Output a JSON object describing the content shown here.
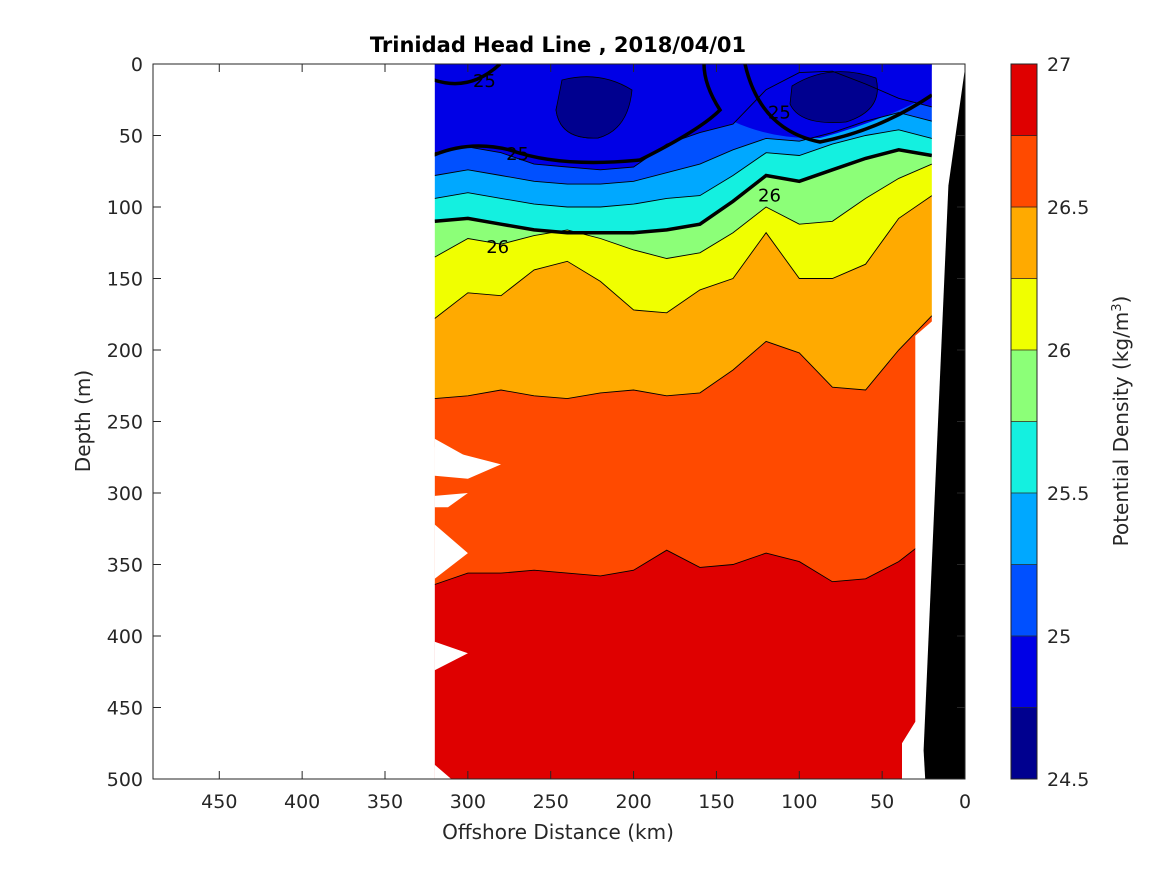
{
  "chart_data": {
    "type": "contourf",
    "title": "Trinidad Head Line , 2018/04/01",
    "xlabel": "Offshore Distance (km)",
    "ylabel": "Depth (m)",
    "xlim": [
      490,
      0
    ],
    "ylim": [
      0,
      500
    ],
    "x_reversed": true,
    "y_reversed": true,
    "x_ticks": [
      450,
      400,
      350,
      300,
      250,
      200,
      150,
      100,
      50,
      0
    ],
    "y_ticks": [
      0,
      50,
      100,
      150,
      200,
      250,
      300,
      350,
      400,
      450,
      500
    ],
    "grid": false,
    "colorbar": {
      "label_main": "Potential Density (kg/m",
      "label_exp": "3",
      "label_close": ")",
      "min": 24.5,
      "max": 27,
      "step": 0.25,
      "ticks": [
        24.5,
        25,
        25.5,
        26,
        26.5,
        27
      ],
      "colors": [
        "#00008f",
        "#0000e6",
        "#0050ff",
        "#00a8ff",
        "#14f0e0",
        "#8cff78",
        "#f0ff00",
        "#ffaa00",
        "#ff4a00",
        "#df0000"
      ]
    },
    "bathymetry_color": "#000000",
    "contour_labels": [
      {
        "text": "25",
        "x": 290,
        "depth": 12
      },
      {
        "text": "25",
        "x": 270,
        "depth": 63
      },
      {
        "text": "25",
        "x": 112,
        "depth": 34
      },
      {
        "text": "26",
        "x": 282,
        "depth": 128
      },
      {
        "text": "26",
        "x": 118,
        "depth": 92
      }
    ],
    "isopycnal_depths": {
      "x": [
        320,
        300,
        280,
        260,
        240,
        220,
        200,
        180,
        160,
        140,
        120,
        100,
        80,
        60,
        40,
        20
      ],
      "25.0": [
        0,
        0,
        0,
        0,
        0,
        0,
        0,
        0,
        0,
        0,
        0,
        0,
        0,
        0,
        0,
        0
      ],
      "25.25": [
        62,
        58,
        62,
        70,
        72,
        74,
        72,
        56,
        48,
        42,
        18,
        6,
        5,
        14,
        24,
        30
      ],
      "25.5": [
        78,
        74,
        78,
        82,
        84,
        84,
        82,
        76,
        70,
        60,
        52,
        54,
        48,
        40,
        34,
        40
      ],
      "25.75": [
        94,
        90,
        94,
        98,
        100,
        100,
        98,
        94,
        92,
        78,
        62,
        64,
        56,
        50,
        46,
        52
      ],
      "26.0": [
        110,
        108,
        112,
        116,
        118,
        118,
        118,
        116,
        112,
        96,
        78,
        82,
        74,
        66,
        60,
        64
      ],
      "26.25": [
        135,
        122,
        126,
        120,
        116,
        122,
        130,
        136,
        132,
        118,
        100,
        112,
        110,
        94,
        80,
        70
      ],
      "26.5": [
        178,
        160,
        162,
        144,
        138,
        152,
        172,
        174,
        158,
        150,
        118,
        150,
        150,
        140,
        108,
        92
      ],
      "26.75": [
        234,
        232,
        228,
        232,
        234,
        230,
        228,
        232,
        230,
        214,
        194,
        202,
        226,
        228,
        200,
        176
      ],
      "27.0": [
        364,
        356,
        356,
        354,
        356,
        358,
        354,
        340,
        352,
        350,
        342,
        348,
        362,
        360,
        348,
        330
      ]
    }
  }
}
